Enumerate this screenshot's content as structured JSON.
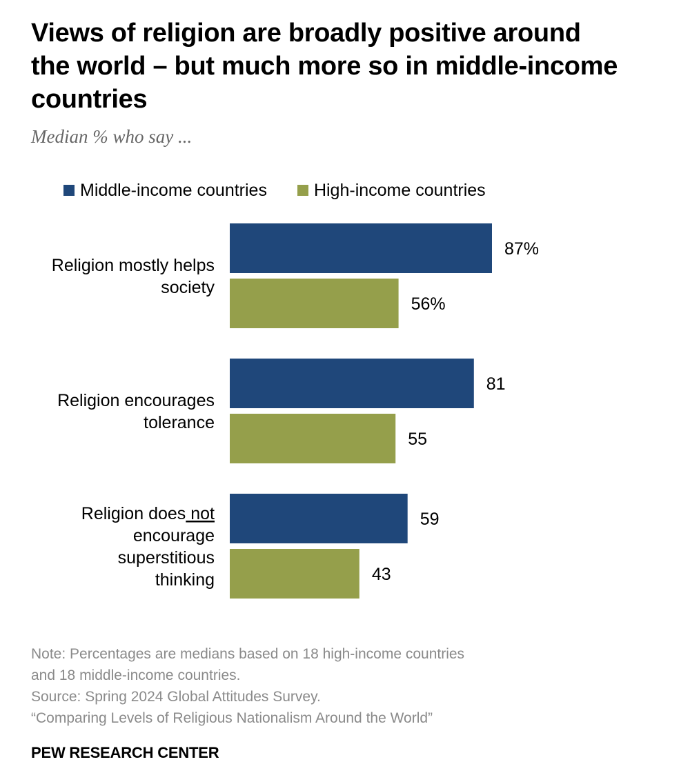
{
  "header": {
    "title": "Views of religion are broadly positive around the world – but much more so in middle-income countries",
    "subtitle": "Median % who say ..."
  },
  "colors": {
    "middle_income": "#1f477a",
    "high_income": "#959f4b"
  },
  "chart_data": {
    "type": "bar",
    "orientation": "horizontal",
    "categories": [
      "Religion mostly helps society",
      "Religion encourages tolerance",
      "Religion does not encourage superstitious thinking"
    ],
    "category_lines": [
      [
        "Religion mostly helps",
        "society"
      ],
      [
        "Religion encourages",
        "tolerance"
      ],
      [
        "Religion does not",
        "encourage",
        "superstitious",
        "thinking"
      ]
    ],
    "underlined_word": "not",
    "series": [
      {
        "name": "Middle-income countries",
        "values": [
          87,
          81,
          59
        ],
        "labels": [
          "87%",
          "81",
          "59"
        ]
      },
      {
        "name": "High-income countries",
        "values": [
          56,
          55,
          43
        ],
        "labels": [
          "56%",
          "55",
          "43"
        ]
      }
    ],
    "xlim": [
      0,
      100
    ],
    "legend_position": "top",
    "grid": false
  },
  "footer": {
    "note_line1": "Note: Percentages are medians based on 18 high-income countries",
    "note_line2": "and 18 middle-income countries.",
    "source": "Source: Spring 2024 Global Attitudes Survey.",
    "report": "“Comparing Levels of Religious Nationalism Around the World”",
    "brand": "PEW RESEARCH CENTER"
  }
}
